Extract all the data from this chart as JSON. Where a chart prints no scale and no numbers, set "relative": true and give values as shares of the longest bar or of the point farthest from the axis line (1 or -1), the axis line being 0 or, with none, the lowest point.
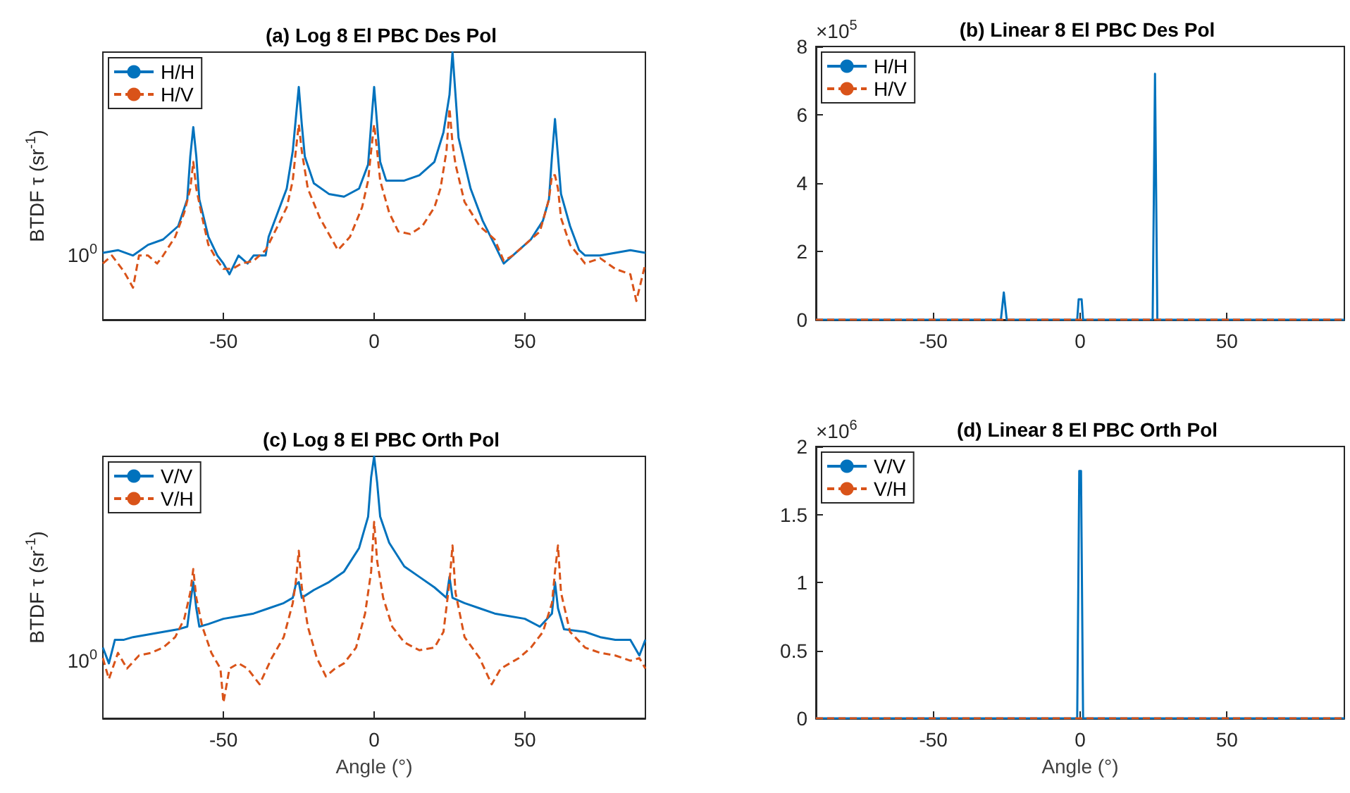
{
  "chart_data": [
    {
      "type": "line",
      "title": "(a) Log 8 El PBC Des Pol",
      "ylabel": "BTDF τ (sr$^{-1}$)",
      "relative": true,
      "xlim": [
        -90,
        90
      ],
      "xticks": [
        -50,
        0,
        50
      ],
      "legend": "top left",
      "marker": "none",
      "grid": false,
      "annotations": [
        {
          "text": "10$^{0}$",
          "x": -90,
          "y": 0.24
        }
      ],
      "series": [
        {
          "name": "H/H",
          "color": "#0072bd",
          "line_style": "solid",
          "x": [
            -90,
            -85,
            -80,
            -75,
            -70,
            -65,
            -62,
            -61,
            -60,
            -59,
            -58,
            -55,
            -52,
            -50,
            -48,
            -45,
            -42,
            -40,
            -36,
            -35,
            -32,
            -29,
            -27,
            -26,
            -25,
            -24,
            -23,
            -20,
            -15,
            -10,
            -5,
            -2,
            -1,
            0,
            1,
            2,
            4,
            10,
            15,
            20,
            23,
            25,
            26,
            27,
            28,
            32,
            36,
            40,
            43,
            45,
            48,
            52,
            56,
            58,
            59,
            60,
            61,
            62,
            65,
            68,
            70,
            75,
            80,
            85,
            90
          ],
          "values": [
            0.25,
            0.26,
            0.24,
            0.28,
            0.3,
            0.35,
            0.45,
            0.61,
            0.72,
            0.61,
            0.45,
            0.31,
            0.24,
            0.21,
            0.17,
            0.24,
            0.21,
            0.24,
            0.24,
            0.31,
            0.4,
            0.49,
            0.63,
            0.75,
            0.87,
            0.73,
            0.61,
            0.51,
            0.47,
            0.46,
            0.49,
            0.58,
            0.73,
            0.87,
            0.73,
            0.59,
            0.52,
            0.52,
            0.54,
            0.59,
            0.7,
            0.84,
            1,
            0.84,
            0.68,
            0.49,
            0.37,
            0.28,
            0.21,
            0.23,
            0.26,
            0.3,
            0.37,
            0.45,
            0.61,
            0.75,
            0.61,
            0.47,
            0.35,
            0.26,
            0.24,
            0.24,
            0.25,
            0.26,
            0.25
          ]
        },
        {
          "name": "H/V",
          "color": "#d95319",
          "line_style": "dashed",
          "x": [
            -90,
            -87,
            -83,
            -80,
            -78,
            -75,
            -72,
            -70,
            -66,
            -63,
            -61,
            -60,
            -59,
            -57,
            -55,
            -52,
            -50,
            -47,
            -44,
            -40,
            -36,
            -32,
            -29,
            -27,
            -26,
            -25,
            -24,
            -22,
            -18,
            -14,
            -12,
            -8,
            -4,
            -2,
            -1,
            0,
            1,
            2,
            5,
            8,
            12,
            16,
            20,
            22,
            24,
            25,
            26,
            27,
            30,
            35,
            40,
            43,
            46,
            50,
            55,
            58,
            59,
            60,
            61,
            62,
            65,
            70,
            75,
            80,
            85,
            87,
            90
          ],
          "values": [
            0.21,
            0.24,
            0.18,
            0.12,
            0.24,
            0.24,
            0.21,
            0.24,
            0.31,
            0.4,
            0.49,
            0.59,
            0.49,
            0.38,
            0.28,
            0.22,
            0.19,
            0.19,
            0.21,
            0.22,
            0.26,
            0.35,
            0.42,
            0.52,
            0.63,
            0.73,
            0.63,
            0.49,
            0.38,
            0.3,
            0.26,
            0.31,
            0.42,
            0.52,
            0.63,
            0.73,
            0.63,
            0.52,
            0.4,
            0.33,
            0.32,
            0.35,
            0.42,
            0.49,
            0.63,
            0.79,
            0.66,
            0.58,
            0.44,
            0.35,
            0.3,
            0.22,
            0.24,
            0.28,
            0.33,
            0.45,
            0.54,
            0.54,
            0.49,
            0.38,
            0.28,
            0.21,
            0.23,
            0.19,
            0.17,
            0.07,
            0.21
          ]
        }
      ]
    },
    {
      "type": "line",
      "title": "(b) Linear 8 El PBC Des Pol",
      "xlim": [
        -90,
        90
      ],
      "xticks": [
        -50,
        0,
        50
      ],
      "ylim": [
        0,
        8
      ],
      "yticks": [
        0,
        2,
        4,
        6,
        8
      ],
      "legend": "top left",
      "marker": "none",
      "grid": false,
      "annotations": [
        "×10$^{5}$"
      ],
      "series": [
        {
          "name": "H/H",
          "color": "#0072bd",
          "line_style": "solid",
          "x": [
            -90,
            -27,
            -26,
            -25,
            -1,
            -0.5,
            0.5,
            1,
            24.7,
            25.5,
            26.3,
            90
          ],
          "values": [
            0,
            0,
            0.8,
            0,
            0,
            0.6,
            0.6,
            0,
            0,
            7.2,
            0,
            0
          ]
        },
        {
          "name": "H/V",
          "color": "#d95319",
          "line_style": "dashed",
          "x": [
            -90,
            90
          ],
          "values": [
            0,
            0
          ]
        }
      ]
    },
    {
      "type": "line",
      "title": "(c) Log 8 El PBC Orth Pol",
      "xlabel": "Angle (°)",
      "ylabel": "BTDF τ (sr$^{-1}$)",
      "relative": true,
      "xlim": [
        -90,
        90
      ],
      "xticks": [
        -50,
        0,
        50
      ],
      "legend": "top left",
      "marker": "none",
      "grid": false,
      "annotations": [
        {
          "text": "10$^{0}$",
          "x": -90,
          "y": 0.22
        }
      ],
      "series": [
        {
          "name": "V/V",
          "color": "#0072bd",
          "line_style": "solid",
          "x": [
            -90,
            -88,
            -86,
            -83,
            -80,
            -75,
            -70,
            -65,
            -62,
            -61,
            -60,
            -59,
            -58,
            -55,
            -50,
            -45,
            -40,
            -35,
            -30,
            -27,
            -26,
            -25,
            -24,
            -20,
            -15,
            -10,
            -5,
            -2,
            -1,
            0,
            1,
            2,
            5,
            10,
            15,
            20,
            24,
            25,
            26,
            30,
            35,
            40,
            45,
            50,
            55,
            59,
            60,
            61,
            63,
            70,
            75,
            80,
            85,
            88,
            90
          ],
          "values": [
            0.27,
            0.21,
            0.3,
            0.3,
            0.31,
            0.32,
            0.33,
            0.34,
            0.35,
            0.44,
            0.52,
            0.42,
            0.35,
            0.36,
            0.38,
            0.39,
            0.4,
            0.42,
            0.44,
            0.46,
            0.51,
            0.52,
            0.46,
            0.49,
            0.52,
            0.56,
            0.65,
            0.77,
            0.92,
            1,
            0.9,
            0.77,
            0.67,
            0.58,
            0.54,
            0.5,
            0.46,
            0.54,
            0.46,
            0.44,
            0.42,
            0.4,
            0.39,
            0.38,
            0.35,
            0.4,
            0.52,
            0.42,
            0.34,
            0.33,
            0.31,
            0.3,
            0.3,
            0.24,
            0.3
          ]
        },
        {
          "name": "V/H",
          "color": "#d95319",
          "line_style": "dashed",
          "x": [
            -90,
            -88,
            -85,
            -82,
            -78,
            -74,
            -70,
            -66,
            -63,
            -61,
            -60,
            -59,
            -57,
            -54,
            -51,
            -50,
            -48,
            -45,
            -42,
            -38,
            -34,
            -30,
            -27,
            -26,
            -25,
            -24,
            -22,
            -19,
            -16,
            -13,
            -10,
            -6,
            -3,
            -1,
            0,
            1,
            3,
            6,
            10,
            15,
            20,
            23,
            25,
            26,
            27,
            30,
            35,
            39,
            42,
            45,
            48,
            52,
            56,
            59,
            60,
            61,
            62,
            65,
            70,
            75,
            80,
            85,
            88,
            90
          ],
          "values": [
            0.23,
            0.15,
            0.25,
            0.19,
            0.24,
            0.25,
            0.27,
            0.31,
            0.38,
            0.48,
            0.57,
            0.46,
            0.35,
            0.25,
            0.19,
            0.06,
            0.19,
            0.21,
            0.19,
            0.13,
            0.23,
            0.31,
            0.44,
            0.52,
            0.64,
            0.5,
            0.35,
            0.23,
            0.16,
            0.19,
            0.21,
            0.27,
            0.4,
            0.56,
            0.75,
            0.6,
            0.46,
            0.35,
            0.29,
            0.26,
            0.27,
            0.33,
            0.52,
            0.66,
            0.48,
            0.31,
            0.23,
            0.13,
            0.19,
            0.21,
            0.23,
            0.27,
            0.33,
            0.44,
            0.56,
            0.66,
            0.48,
            0.33,
            0.27,
            0.25,
            0.24,
            0.22,
            0.23,
            0.19
          ]
        }
      ]
    },
    {
      "type": "line",
      "title": "(d) Linear 8 El PBC Orth Pol",
      "xlabel": "Angle (°)",
      "xlim": [
        -90,
        90
      ],
      "xticks": [
        -50,
        0,
        50
      ],
      "ylim": [
        0,
        2
      ],
      "yticks": [
        0,
        0.5,
        1,
        1.5,
        2
      ],
      "legend": "top left",
      "marker": "none",
      "grid": false,
      "annotations": [
        "×10$^{6}$"
      ],
      "series": [
        {
          "name": "V/V",
          "color": "#0072bd",
          "line_style": "solid",
          "x": [
            -90,
            -1,
            -0.3,
            0.3,
            1,
            90
          ],
          "values": [
            0,
            0,
            1.82,
            1.82,
            0,
            0
          ]
        },
        {
          "name": "V/H",
          "color": "#d95319",
          "line_style": "dashed",
          "x": [
            -90,
            90
          ],
          "values": [
            0,
            0
          ]
        }
      ]
    }
  ]
}
